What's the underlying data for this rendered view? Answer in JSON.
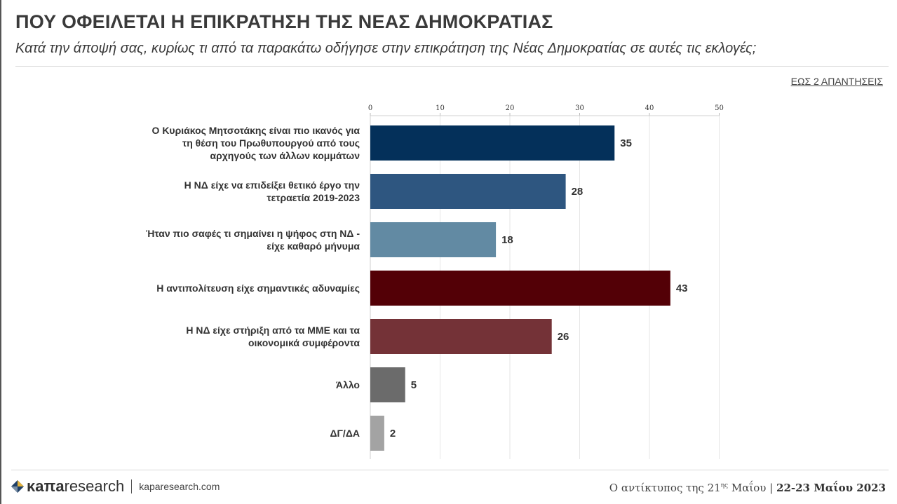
{
  "header": {
    "title": "ΠΟΥ ΟΦΕΙΛΕΤΑΙ Η ΕΠΙΚΡΑΤΗΣΗ ΤΗΣ ΝΕΑΣ ΔΗΜΟΚΡΑΤΙΑΣ",
    "subtitle": "Κατά την άποψή σας, κυρίως τι από τα παρακάτω οδήγησε στην επικράτηση της Νέας Δημοκρατίας σε αυτές τις εκλογές;",
    "note": "ΕΩΣ 2 ΑΠΑΝΤΗΣΕΙΣ"
  },
  "chart_data": {
    "type": "bar",
    "orientation": "horizontal",
    "title": "",
    "xlabel": "",
    "ylabel": "",
    "xlim": [
      0,
      50
    ],
    "ticks": [
      0,
      10,
      20,
      30,
      40,
      50
    ],
    "grid": true,
    "categories": [
      [
        "Ο Κυριάκος Μητσοτάκης είναι πιο ικανός για",
        "τη θέση του Πρωθυπουργού από τους",
        "αρχηγούς των άλλων κομμάτων"
      ],
      [
        "Η ΝΔ είχε να επιδείξει θετικό έργο την",
        "τετραετία 2019-2023"
      ],
      [
        "Ήταν πιο σαφές τι σημαίνει η ψήφος στη ΝΔ -",
        "είχε καθαρό μήνυμα"
      ],
      [
        "Η αντιπολίτευση είχε σημαντικές αδυναμίες"
      ],
      [
        "Η ΝΔ είχε στήριξη από τα ΜΜΕ και τα",
        "οικονομικά συμφέροντα"
      ],
      [
        "Άλλο"
      ],
      [
        "ΔΓ/ΔΑ"
      ]
    ],
    "values": [
      35,
      28,
      18,
      43,
      26,
      5,
      2
    ],
    "colors": [
      "#04305a",
      "#2e5680",
      "#628aa3",
      "#530006",
      "#743237",
      "#6b6b6b",
      "#a3a3a3"
    ]
  },
  "footer": {
    "brand_bold": "κaπa",
    "brand_light": "research",
    "site": "kaparesearch.com",
    "survey_prefix": "Ο αντίκτυπος της 21",
    "survey_sup": "ης",
    "survey_suffix": " Μαΐου",
    "dates": "22-23 Μαΐου 2023"
  }
}
